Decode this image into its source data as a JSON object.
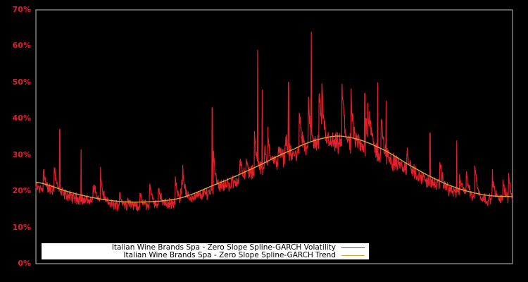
{
  "chart_data": {
    "type": "line",
    "title": "",
    "xlabel": "",
    "ylabel": "",
    "ylim": [
      0,
      70
    ],
    "yticks": [
      "0%",
      "10%",
      "20%",
      "30%",
      "40%",
      "50%",
      "60%",
      "70%"
    ],
    "grid": false,
    "legend_position": "lower left",
    "background": "#000000",
    "axis_color": "#c0c0c0",
    "tick_label_color": "#e0202a",
    "series": [
      {
        "name": "Italian Wine Brands Spa - Zero Slope Spline-GARCH Volatility",
        "color": "#e0202a",
        "description": "Daily conditional volatility, noisy with spikes",
        "approx_baseline_pct": [
          22,
          19,
          17,
          16,
          16,
          17,
          19,
          21,
          24,
          28,
          32,
          31,
          33,
          31,
          27,
          22,
          19,
          18,
          17
        ],
        "notable_spikes_pct": [
          {
            "x_frac": 0.05,
            "value": 37
          },
          {
            "x_frac": 0.095,
            "value": 31.5
          },
          {
            "x_frac": 0.37,
            "value": 38
          },
          {
            "x_frac": 0.37,
            "value": 43
          },
          {
            "x_frac": 0.465,
            "value": 59
          },
          {
            "x_frac": 0.475,
            "value": 48
          },
          {
            "x_frac": 0.53,
            "value": 50
          },
          {
            "x_frac": 0.578,
            "value": 64
          },
          {
            "x_frac": 0.69,
            "value": 47
          },
          {
            "x_frac": 0.717,
            "value": 50
          },
          {
            "x_frac": 0.735,
            "value": 45
          },
          {
            "x_frac": 0.827,
            "value": 36
          },
          {
            "x_frac": 0.883,
            "value": 34
          }
        ]
      },
      {
        "name": "Italian Wine Brands Spa - Zero Slope Spline-GARCH Trend",
        "color": "#d4a53a",
        "description": "Smooth spline trend",
        "points_pct": [
          {
            "x_frac": 0.0,
            "value": 22.5
          },
          {
            "x_frac": 0.077,
            "value": 19.5
          },
          {
            "x_frac": 0.153,
            "value": 17.5
          },
          {
            "x_frac": 0.22,
            "value": 17
          },
          {
            "x_frac": 0.3,
            "value": 18
          },
          {
            "x_frac": 0.37,
            "value": 21.5
          },
          {
            "x_frac": 0.45,
            "value": 26
          },
          {
            "x_frac": 0.54,
            "value": 31.5
          },
          {
            "x_frac": 0.6,
            "value": 34.5
          },
          {
            "x_frac": 0.65,
            "value": 35
          },
          {
            "x_frac": 0.72,
            "value": 32
          },
          {
            "x_frac": 0.8,
            "value": 26
          },
          {
            "x_frac": 0.87,
            "value": 21.5
          },
          {
            "x_frac": 0.94,
            "value": 19
          },
          {
            "x_frac": 1.0,
            "value": 18.5
          }
        ]
      }
    ]
  },
  "legend": {
    "items": [
      {
        "label": "Italian Wine Brands Spa - Zero Slope Spline-GARCH Volatility",
        "color": "#e0202a"
      },
      {
        "label": "Italian Wine Brands Spa - Zero Slope Spline-GARCH Trend",
        "color": "#d4a53a"
      }
    ]
  }
}
